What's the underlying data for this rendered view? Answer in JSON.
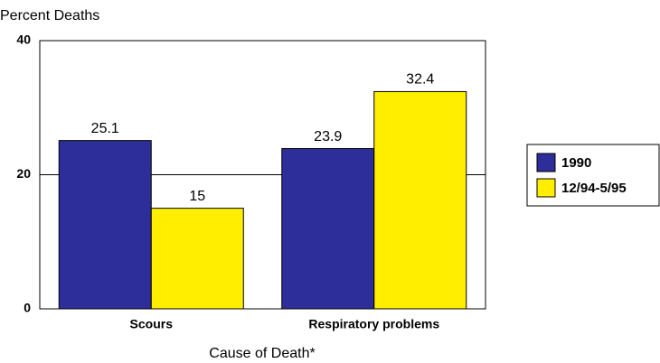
{
  "chart_data": {
    "type": "bar",
    "title": "Percent Deaths",
    "xlabel": "Cause of Death*",
    "categories": [
      "Scours",
      "Respiratory problems"
    ],
    "series": [
      {
        "name": "1990",
        "color": "#2e2e9a",
        "values": [
          25.1,
          23.9
        ]
      },
      {
        "name": "12/94-5/95",
        "color": "#ffee00",
        "values": [
          15,
          32.4
        ]
      }
    ],
    "ylim": [
      0,
      40
    ],
    "yticks": [
      0,
      20,
      40
    ],
    "grid": true,
    "legend": "right"
  }
}
